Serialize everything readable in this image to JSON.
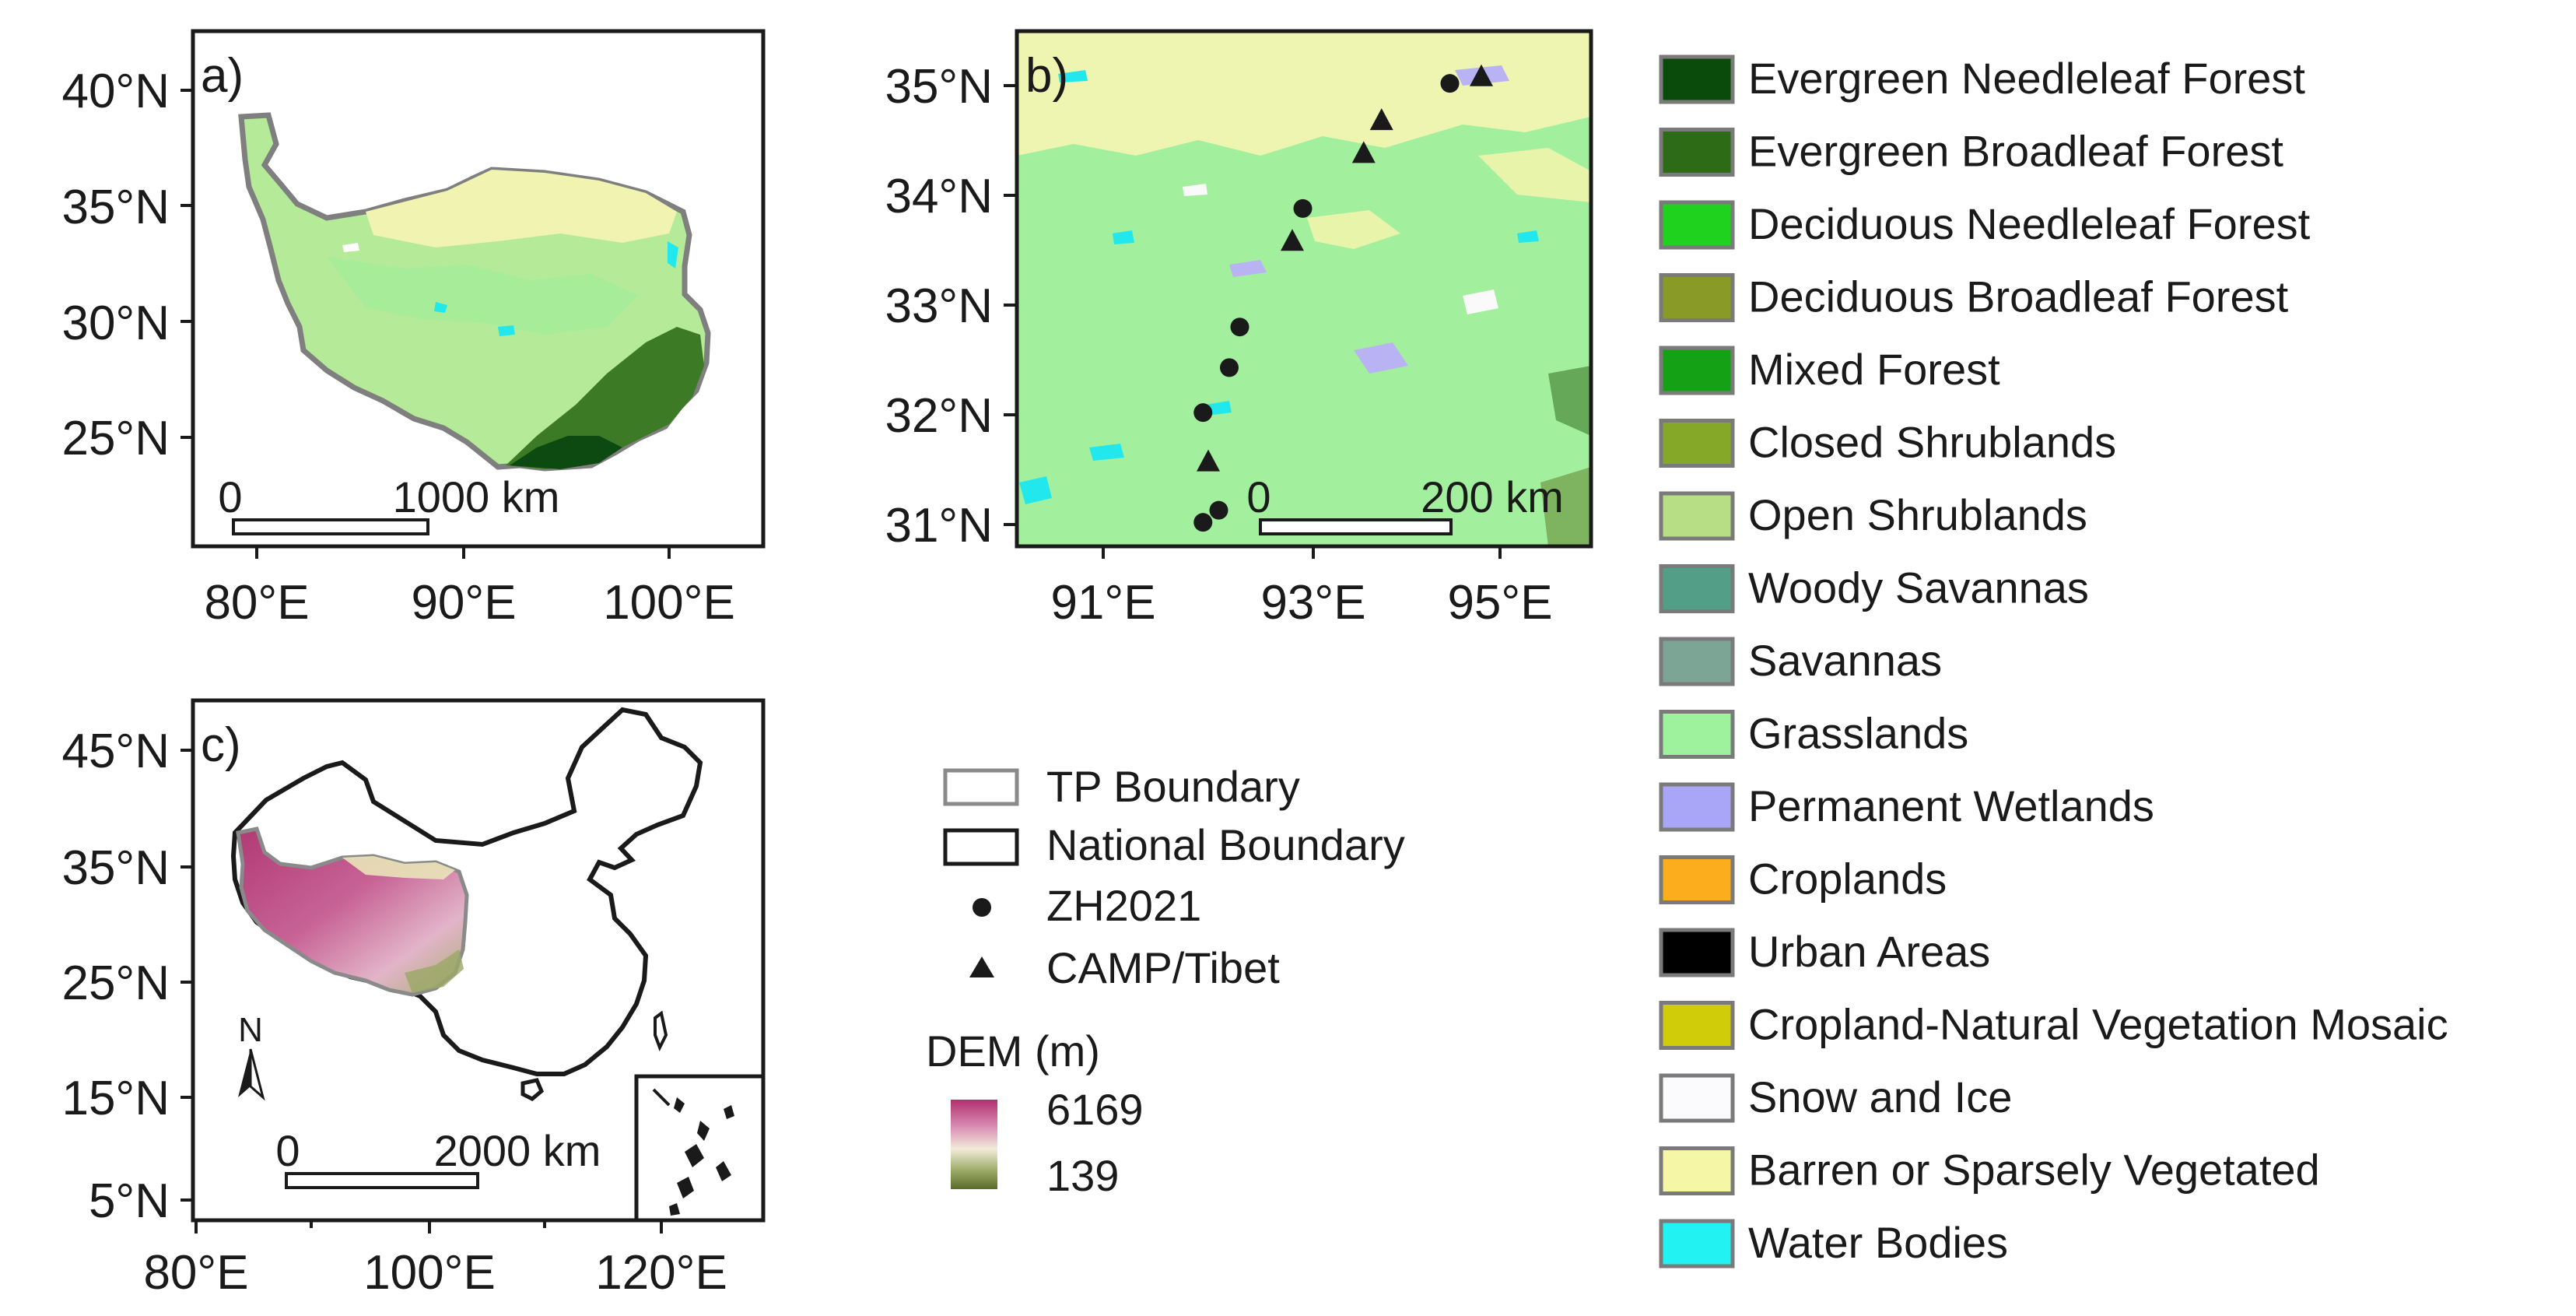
{
  "panels": {
    "a": {
      "label": "a)",
      "lat_ticks": [
        "40°N",
        "35°N",
        "30°N",
        "25°N"
      ],
      "lon_ticks": [
        "80°E",
        "90°E",
        "100°E"
      ],
      "scalebar": {
        "start": "0",
        "end": "1000 km"
      }
    },
    "b": {
      "label": "b)",
      "lat_ticks": [
        "35°N",
        "34°N",
        "33°N",
        "32°N",
        "31°N"
      ],
      "lon_ticks": [
        "91°E",
        "93°E",
        "95°E"
      ],
      "scalebar": {
        "start": "0",
        "end": "200 km"
      },
      "sites": [
        {
          "type": "ZH2021",
          "lon": 94.3,
          "lat": 35.02
        },
        {
          "type": "ZH2021",
          "lon": 92.9,
          "lat": 33.88
        },
        {
          "type": "ZH2021",
          "lon": 92.3,
          "lat": 32.8
        },
        {
          "type": "ZH2021",
          "lon": 92.2,
          "lat": 32.43
        },
        {
          "type": "ZH2021",
          "lon": 91.95,
          "lat": 32.02
        },
        {
          "type": "ZH2021",
          "lon": 92.1,
          "lat": 31.13
        },
        {
          "type": "ZH2021",
          "lon": 91.95,
          "lat": 31.02
        },
        {
          "type": "CAMP/Tibet",
          "lon": 94.6,
          "lat": 35.08
        },
        {
          "type": "CAMP/Tibet",
          "lon": 93.65,
          "lat": 34.68
        },
        {
          "type": "CAMP/Tibet",
          "lon": 93.48,
          "lat": 34.38
        },
        {
          "type": "CAMP/Tibet",
          "lon": 92.8,
          "lat": 33.58
        },
        {
          "type": "CAMP/Tibet",
          "lon": 92.0,
          "lat": 31.57
        }
      ]
    },
    "c": {
      "label": "c)",
      "lat_ticks": [
        "45°N",
        "35°N",
        "25°N",
        "15°N",
        "5°N"
      ],
      "lon_ticks": [
        "80°E",
        "100°E",
        "120°E"
      ],
      "scalebar": {
        "start": "0",
        "end": "2000 km"
      },
      "north_arrow": "N"
    }
  },
  "legend": {
    "items": [
      {
        "label": "TP Boundary",
        "symbol": "gray-rect-outline"
      },
      {
        "label": "National Boundary",
        "symbol": "black-rect-outline"
      },
      {
        "label": "ZH2021",
        "symbol": "circle"
      },
      {
        "label": "CAMP/Tibet",
        "symbol": "triangle"
      }
    ],
    "dem": {
      "title": "DEM (m)",
      "max": "6169",
      "min": "139",
      "colors": [
        "#b2306e",
        "#d98cb3",
        "#f2ecd9",
        "#9aa865",
        "#5b6b2a"
      ]
    }
  },
  "landcover_legend": [
    {
      "label": "Evergreen Needleleaf Forest",
      "color": "#0a4a0a"
    },
    {
      "label": "Evergreen Broadleaf Forest",
      "color": "#2e6b16"
    },
    {
      "label": "Deciduous Needleleaf Forest",
      "color": "#1ed21e"
    },
    {
      "label": "Deciduous Broadleaf Forest",
      "color": "#8a9a26"
    },
    {
      "label": "Mixed Forest",
      "color": "#15a115"
    },
    {
      "label": "Closed Shrublands",
      "color": "#85a829"
    },
    {
      "label": "Open Shrublands",
      "color": "#b7dd85"
    },
    {
      "label": "Woody Savannas",
      "color": "#539e86"
    },
    {
      "label": "Savannas",
      "color": "#7da596"
    },
    {
      "label": "Grasslands",
      "color": "#9ef29e"
    },
    {
      "label": "Permanent Wetlands",
      "color": "#a9a6f7"
    },
    {
      "label": "Croplands",
      "color": "#fbad1d"
    },
    {
      "label": "Urban Areas",
      "color": "#000000"
    },
    {
      "label": "Cropland-Natural Vegetation Mosaic",
      "color": "#d1cc0a"
    },
    {
      "label": "Snow and Ice",
      "color": "#fbfafc"
    },
    {
      "label": "Barren or Sparsely Vegetated",
      "color": "#f5f7a6"
    },
    {
      "label": "Water Bodies",
      "color": "#22f2f2"
    }
  ]
}
